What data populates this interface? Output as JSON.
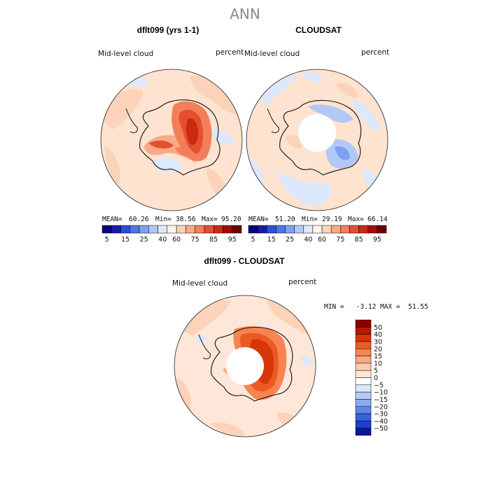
{
  "title": "ANN",
  "colors": {
    "ocean_bg": "#fde3d0",
    "coast": "#111111",
    "hole": "#ffffff"
  },
  "panels": [
    {
      "title": "dflt099 (yrs 1-1)",
      "variable": "Mid-level cloud",
      "units": "percent",
      "stats": {
        "mean_label": "MEAN=",
        "mean": "60.26",
        "min_label": "Min=",
        "min": "38.56",
        "max_label": "Max=",
        "max": "95.20"
      }
    },
    {
      "title": "CLOUDSAT",
      "variable": "Mid-level cloud",
      "units": "percent",
      "stats": {
        "mean_label": "MEAN=",
        "mean": "51.20",
        "min_label": "Min=",
        "min": "29.19",
        "max_label": "Max=",
        "max": "66.14"
      }
    },
    {
      "title": "dflt099 - CLOUDSAT",
      "variable": "Mid-level cloud",
      "units": "percent",
      "stats_line": "MIN =   -3.12 MAX =  51.55"
    }
  ],
  "chart_data": [
    {
      "type": "heatmap",
      "title": "dflt099 (yrs 1-1)",
      "projection": "south polar stereographic",
      "colorbar": {
        "orientation": "horizontal",
        "tick_labels": [
          "5",
          "15",
          "25",
          "40",
          "60",
          "75",
          "85",
          "95"
        ],
        "colors": [
          "#06067a",
          "#1a1aa8",
          "#2a50d8",
          "#4a78e6",
          "#7fa2f0",
          "#b2c8f7",
          "#dde8fc",
          "#fff4ec",
          "#fcd2b8",
          "#f8aa86",
          "#f37e5a",
          "#e4502f",
          "#c92a10",
          "#a00f00",
          "#6e0000"
        ]
      },
      "stats": {
        "mean": 60.26,
        "min": 38.56,
        "max": 95.2
      }
    },
    {
      "type": "heatmap",
      "title": "CLOUDSAT",
      "projection": "south polar stereographic",
      "colorbar": {
        "orientation": "horizontal",
        "tick_labels": [
          "5",
          "15",
          "25",
          "40",
          "60",
          "75",
          "85",
          "95"
        ],
        "colors": [
          "#06067a",
          "#1a1aa8",
          "#2a50d8",
          "#4a78e6",
          "#7fa2f0",
          "#b2c8f7",
          "#dde8fc",
          "#fff4ec",
          "#fcd2b8",
          "#f8aa86",
          "#f37e5a",
          "#e4502f",
          "#c92a10",
          "#a00f00",
          "#6e0000"
        ]
      },
      "stats": {
        "mean": 51.2,
        "min": 29.19,
        "max": 66.14
      }
    },
    {
      "type": "heatmap",
      "title": "dflt099 - CLOUDSAT",
      "projection": "south polar stereographic",
      "colorbar": {
        "orientation": "vertical",
        "tick_labels": [
          "50",
          "40",
          "30",
          "20",
          "15",
          "10",
          "5",
          "0",
          "−5",
          "−10",
          "−15",
          "−20",
          "−30",
          "−40",
          "−50"
        ],
        "colors": [
          "#8c0000",
          "#b81800",
          "#d83608",
          "#ec5a24",
          "#f78452",
          "#fbaa82",
          "#fdccaf",
          "#fee7d8",
          "#ffffff",
          "#dbe8fb",
          "#b4ccf5",
          "#8aabef",
          "#5d86e6",
          "#3562db",
          "#1c3ed0",
          "#0a16a0"
        ]
      },
      "stats": {
        "min": -3.12,
        "max": 51.55
      }
    }
  ]
}
